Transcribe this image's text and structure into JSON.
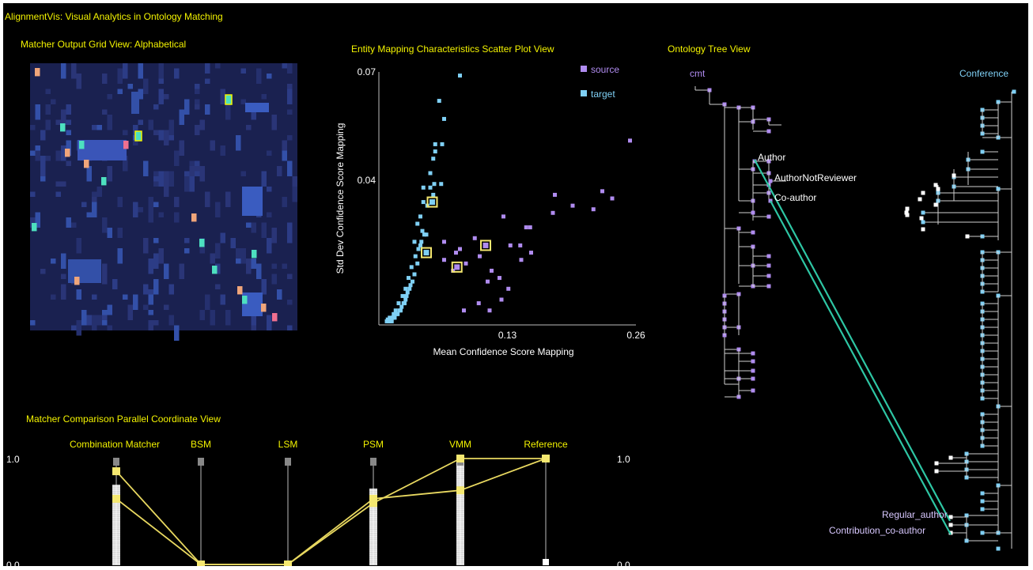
{
  "app": {
    "title": "AlignmentVis: Visual Analytics in Ontology Matching"
  },
  "panels": {
    "grid": {
      "title": "Matcher Output Grid View: Alphabetical"
    },
    "scatter": {
      "title": "Entity Mapping Characteristics Scatter Plot View"
    },
    "tree": {
      "title": "Ontology Tree View"
    },
    "parallel": {
      "title": "Matcher Comparison Parallel Coordinate View"
    }
  },
  "colors": {
    "source": "#b08cf0",
    "target": "#7fd0f5",
    "accent": "#f3f300",
    "selected": "#f5e870",
    "link": "#2ec6a4"
  },
  "tree": {
    "source_root": "cmt",
    "target_root": "Conference",
    "source_labels": [
      "Author",
      "AuthorNotReviewer",
      "Co-author"
    ],
    "target_labels": [
      "Regular_author",
      "Contribution_co-author"
    ],
    "links": [
      {
        "from": "Author",
        "to": "Regular_author"
      },
      {
        "from": "Co-author",
        "to": "Contribution_co-author"
      }
    ]
  },
  "chart_data": [
    {
      "type": "scatter",
      "title": "Entity Mapping Characteristics Scatter Plot View",
      "xlabel": "Mean Confidence Score Mapping",
      "ylabel": "Std Dev Confidence Score Mapping",
      "xlim": [
        0.0,
        0.26
      ],
      "ylim": [
        0.0,
        0.07
      ],
      "x_ticks": [
        "0.13",
        "0.26"
      ],
      "y_ticks": [
        "0.07",
        "0.04"
      ],
      "legend": {
        "position": "top-right",
        "entries": [
          "source",
          "target"
        ]
      },
      "series": [
        {
          "name": "source",
          "points": [
            [
              0.254,
              0.051
            ],
            [
              0.196,
              0.033
            ],
            [
              0.176,
              0.031
            ],
            [
              0.178,
              0.036
            ],
            [
              0.226,
              0.037
            ],
            [
              0.217,
              0.032
            ],
            [
              0.236,
              0.035
            ],
            [
              0.153,
              0.027
            ],
            [
              0.149,
              0.027
            ],
            [
              0.126,
              0.03
            ],
            [
              0.097,
              0.024
            ],
            [
              0.088,
              0.017
            ],
            [
              0.066,
              0.018
            ],
            [
              0.078,
              0.02
            ],
            [
              0.102,
              0.019
            ],
            [
              0.114,
              0.015
            ],
            [
              0.122,
              0.013
            ],
            [
              0.131,
              0.01
            ],
            [
              0.11,
              0.012
            ],
            [
              0.101,
              0.006
            ],
            [
              0.112,
              0.004
            ],
            [
              0.143,
              0.022
            ],
            [
              0.154,
              0.02
            ],
            [
              0.133,
              0.022
            ],
            [
              0.066,
              0.023
            ],
            [
              0.086,
              0.004
            ],
            [
              0.075,
              0.015
            ],
            [
              0.082,
              0.021
            ],
            [
              0.124,
              0.007
            ],
            [
              0.144,
              0.018
            ]
          ]
        },
        {
          "name": "target",
          "points": [
            [
              0.082,
              0.069
            ],
            [
              0.061,
              0.062
            ],
            [
              0.066,
              0.057
            ],
            [
              0.057,
              0.05
            ],
            [
              0.055,
              0.046
            ],
            [
              0.057,
              0.048
            ],
            [
              0.052,
              0.042
            ],
            [
              0.056,
              0.039
            ],
            [
              0.052,
              0.038
            ],
            [
              0.063,
              0.039
            ],
            [
              0.045,
              0.038
            ],
            [
              0.045,
              0.034
            ],
            [
              0.049,
              0.033
            ],
            [
              0.055,
              0.036
            ],
            [
              0.042,
              0.03
            ],
            [
              0.039,
              0.028
            ],
            [
              0.046,
              0.025
            ],
            [
              0.048,
              0.025
            ],
            [
              0.042,
              0.022
            ],
            [
              0.037,
              0.019
            ],
            [
              0.039,
              0.017
            ],
            [
              0.036,
              0.014
            ],
            [
              0.034,
              0.012
            ],
            [
              0.032,
              0.011
            ],
            [
              0.031,
              0.01
            ],
            [
              0.029,
              0.009
            ],
            [
              0.028,
              0.008
            ],
            [
              0.027,
              0.007
            ],
            [
              0.026,
              0.006
            ],
            [
              0.025,
              0.006
            ],
            [
              0.023,
              0.005
            ],
            [
              0.022,
              0.004
            ],
            [
              0.021,
              0.004
            ],
            [
              0.019,
              0.003
            ],
            [
              0.018,
              0.003
            ],
            [
              0.016,
              0.002
            ],
            [
              0.015,
              0.002
            ],
            [
              0.014,
              0.002
            ],
            [
              0.013,
              0.001
            ],
            [
              0.012,
              0.001
            ],
            [
              0.011,
              0.001
            ],
            [
              0.01,
              0.001
            ],
            [
              0.009,
              0.0015
            ],
            [
              0.008,
              0.001
            ],
            [
              0.04,
              0.021
            ],
            [
              0.043,
              0.023
            ],
            [
              0.044,
              0.026
            ],
            [
              0.036,
              0.023
            ],
            [
              0.033,
              0.016
            ],
            [
              0.03,
              0.013
            ],
            [
              0.027,
              0.01
            ],
            [
              0.024,
              0.008
            ],
            [
              0.02,
              0.006
            ],
            [
              0.017,
              0.004
            ],
            [
              0.015,
              0.003
            ],
            [
              0.011,
              0.002
            ],
            [
              0.064,
              0.05
            ]
          ]
        },
        {
          "name": "selected",
          "points": [
            [
              0.054,
              0.034
            ],
            [
              0.048,
              0.02
            ],
            [
              0.108,
              0.022
            ],
            [
              0.079,
              0.016
            ]
          ]
        }
      ]
    },
    {
      "type": "line",
      "title": "Matcher Comparison Parallel Coordinate View",
      "categories": [
        "Combination Matcher",
        "BSM",
        "LSM",
        "PSM",
        "VMM",
        "Reference"
      ],
      "y_ticks_left": [
        "1.0",
        "0.0"
      ],
      "y_ticks_right": [
        "1.0",
        "0.0"
      ],
      "ylim": [
        0,
        1
      ],
      "series": [
        {
          "values": [
            0.88,
            0.0,
            0.0,
            0.58,
            1.0,
            1.0
          ]
        },
        {
          "values": [
            0.62,
            0.0,
            0.0,
            0.62,
            0.7,
            1.0
          ]
        }
      ]
    }
  ]
}
